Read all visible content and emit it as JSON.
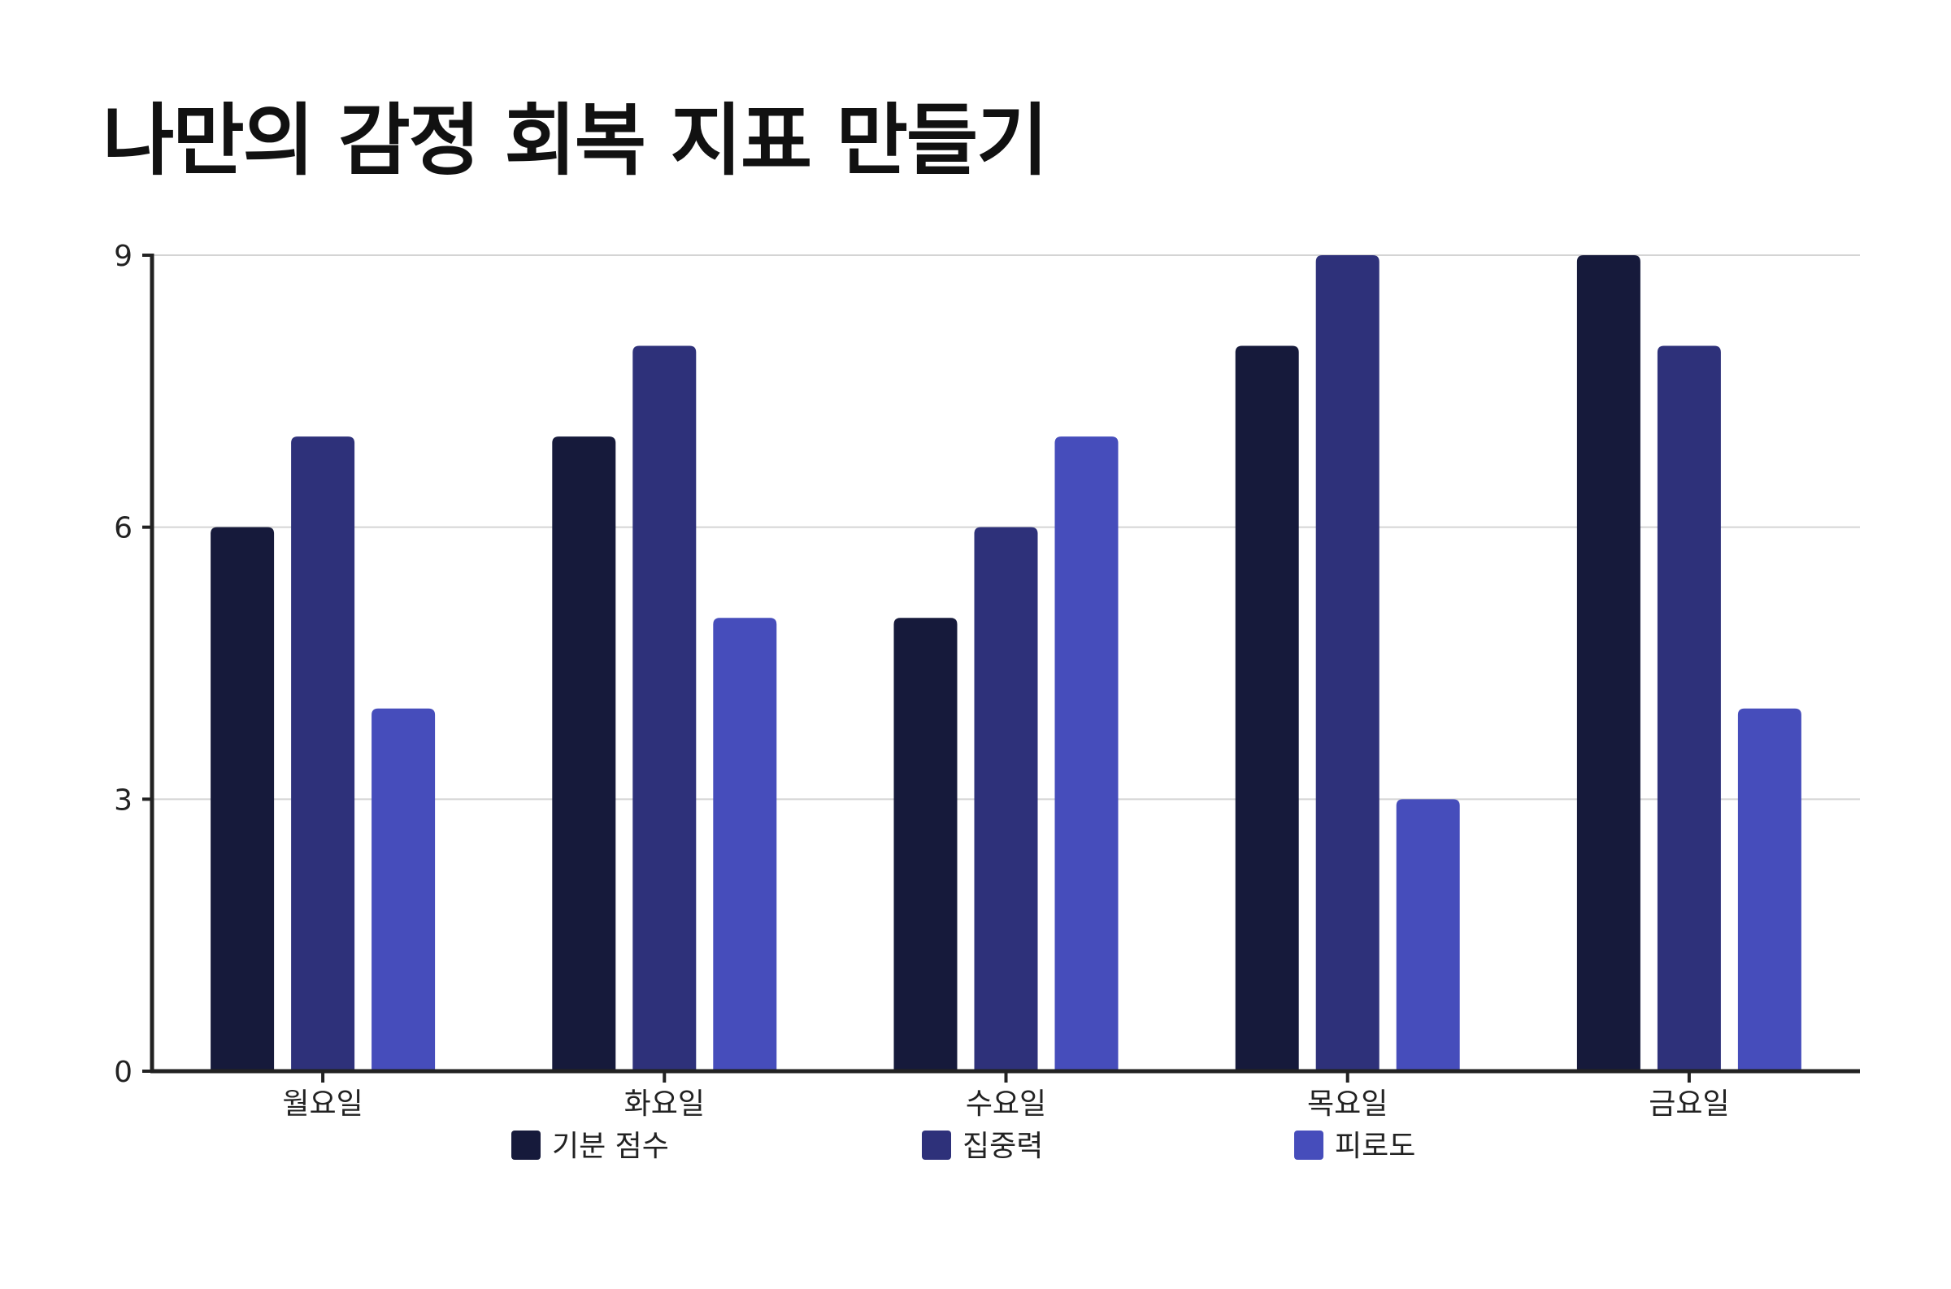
{
  "chart_data": {
    "type": "bar",
    "title": "나만의 감정 회복 지표 만들기",
    "xlabel": "",
    "ylabel": "",
    "categories": [
      "월요일",
      "화요일",
      "수요일",
      "목요일",
      "금요일"
    ],
    "series": [
      {
        "name": "기분 점수",
        "color": "#161a3b",
        "values": [
          6,
          7,
          5,
          8,
          9
        ]
      },
      {
        "name": "집중력",
        "color": "#2e317a",
        "values": [
          7,
          8,
          6,
          9,
          8
        ]
      },
      {
        "name": "피로도",
        "color": "#464dbb",
        "values": [
          4,
          5,
          7,
          3,
          4
        ]
      }
    ],
    "ylim": [
      0,
      9
    ],
    "yticks": [
      0,
      3,
      6,
      9
    ],
    "grid": true,
    "legend_position": "bottom"
  }
}
